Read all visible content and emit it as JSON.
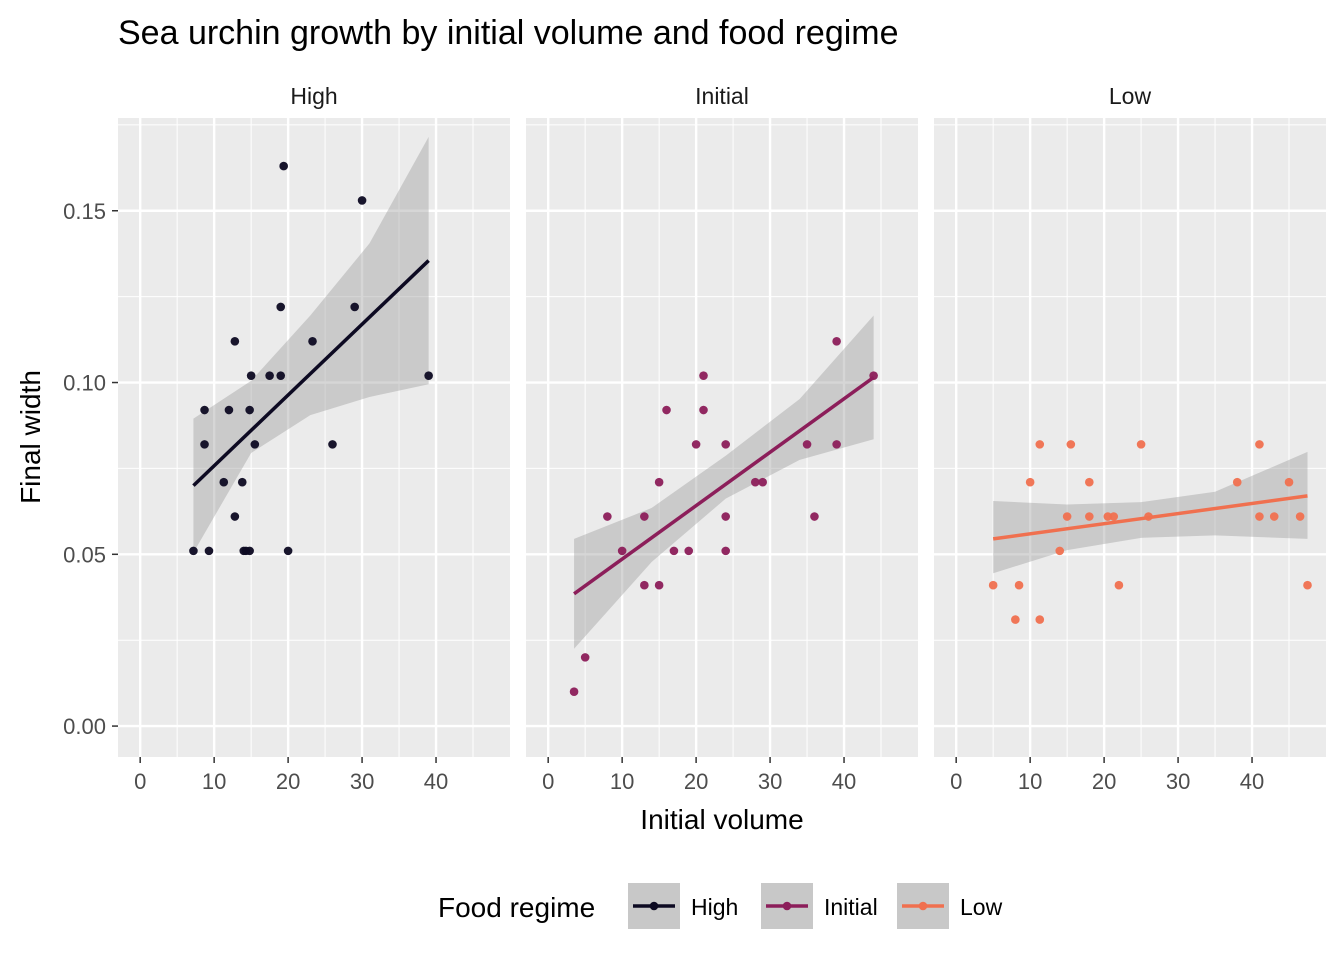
{
  "chart_data": {
    "type": "scatter",
    "title": "Sea urchin growth by initial volume and food regime",
    "xlabel": "Initial volume",
    "ylabel": "Final width",
    "xlim": [
      -3,
      50
    ],
    "ylim": [
      -0.009,
      0.177
    ],
    "x_ticks": [
      "0",
      "10",
      "20",
      "30",
      "40"
    ],
    "x_tick_values": [
      0,
      10,
      20,
      30,
      40
    ],
    "y_ticks": [
      "0.00",
      "0.05",
      "0.10",
      "0.15"
    ],
    "y_tick_values": [
      0,
      0.05,
      0.1,
      0.15
    ],
    "grid": true,
    "facets": [
      "High",
      "Initial",
      "Low"
    ],
    "legend": {
      "title": "Food regime",
      "position": "bottom",
      "entries": [
        "High",
        "Initial",
        "Low"
      ]
    },
    "colors": {
      "High": "#0d0a22",
      "Initial": "#8c1e5a",
      "Low": "#f0704f",
      "panel_bg": "#ebebeb",
      "ribbon": "#c8c8c8"
    },
    "series": [
      {
        "name": "High",
        "points": [
          [
            7.2,
            0.051
          ],
          [
            9.3,
            0.051
          ],
          [
            8.7,
            0.082
          ],
          [
            8.7,
            0.092
          ],
          [
            11.3,
            0.071
          ],
          [
            12,
            0.092
          ],
          [
            12.8,
            0.112
          ],
          [
            12.8,
            0.061
          ],
          [
            14,
            0.051
          ],
          [
            14.3,
            0.051
          ],
          [
            14.8,
            0.051
          ],
          [
            13.8,
            0.071
          ],
          [
            14.8,
            0.092
          ],
          [
            15,
            0.102
          ],
          [
            15.5,
            0.082
          ],
          [
            17.5,
            0.102
          ],
          [
            19,
            0.122
          ],
          [
            19,
            0.102
          ],
          [
            19.4,
            0.163
          ],
          [
            20,
            0.051
          ],
          [
            23.3,
            0.112
          ],
          [
            26,
            0.082
          ],
          [
            29,
            0.122
          ],
          [
            30,
            0.153
          ],
          [
            39,
            0.102
          ]
        ],
        "fit": {
          "x": [
            7.2,
            39
          ],
          "y": [
            0.07,
            0.1355
          ]
        },
        "band": {
          "x": [
            7.2,
            15,
            23,
            31,
            39
          ],
          "lower": [
            0.0505,
            0.0795,
            0.0905,
            0.0958,
            0.0995
          ],
          "upper": [
            0.0895,
            0.1005,
            0.1195,
            0.1405,
            0.1715
          ]
        }
      },
      {
        "name": "Initial",
        "points": [
          [
            3.5,
            0.01
          ],
          [
            5,
            0.02
          ],
          [
            8,
            0.061
          ],
          [
            10,
            0.051
          ],
          [
            13,
            0.041
          ],
          [
            13,
            0.061
          ],
          [
            15,
            0.071
          ],
          [
            15,
            0.041
          ],
          [
            16,
            0.092
          ],
          [
            17,
            0.051
          ],
          [
            19,
            0.051
          ],
          [
            20,
            0.082
          ],
          [
            21,
            0.102
          ],
          [
            21,
            0.092
          ],
          [
            24,
            0.082
          ],
          [
            24,
            0.061
          ],
          [
            24,
            0.051
          ],
          [
            28,
            0.071
          ],
          [
            29,
            0.071
          ],
          [
            35,
            0.082
          ],
          [
            36,
            0.061
          ],
          [
            39,
            0.112
          ],
          [
            39,
            0.082
          ],
          [
            44,
            0.102
          ]
        ],
        "fit": {
          "x": [
            3.5,
            44
          ],
          "y": [
            0.0385,
            0.1015
          ]
        },
        "band": {
          "x": [
            3.5,
            14,
            24,
            34,
            44
          ],
          "lower": [
            0.0225,
            0.0478,
            0.0662,
            0.0775,
            0.0835
          ],
          "upper": [
            0.0545,
            0.0635,
            0.0787,
            0.0952,
            0.1195
          ]
        }
      },
      {
        "name": "Low",
        "points": [
          [
            5,
            0.041
          ],
          [
            8,
            0.031
          ],
          [
            8.5,
            0.041
          ],
          [
            10,
            0.071
          ],
          [
            11.3,
            0.082
          ],
          [
            11.3,
            0.031
          ],
          [
            14,
            0.051
          ],
          [
            15,
            0.061
          ],
          [
            15.5,
            0.082
          ],
          [
            18,
            0.071
          ],
          [
            18,
            0.061
          ],
          [
            20.5,
            0.061
          ],
          [
            21.3,
            0.061
          ],
          [
            22,
            0.041
          ],
          [
            25,
            0.082
          ],
          [
            26,
            0.061
          ],
          [
            38,
            0.071
          ],
          [
            41,
            0.082
          ],
          [
            41,
            0.061
          ],
          [
            43,
            0.061
          ],
          [
            45,
            0.071
          ],
          [
            46.5,
            0.061
          ],
          [
            47.5,
            0.041
          ]
        ],
        "fit": {
          "x": [
            5,
            47.5
          ],
          "y": [
            0.0545,
            0.067
          ]
        },
        "band": {
          "x": [
            5,
            15,
            25,
            35,
            47.5
          ],
          "lower": [
            0.0445,
            0.0512,
            0.0548,
            0.0555,
            0.0545
          ],
          "upper": [
            0.0655,
            0.0645,
            0.0652,
            0.0682,
            0.0798
          ]
        }
      }
    ]
  }
}
